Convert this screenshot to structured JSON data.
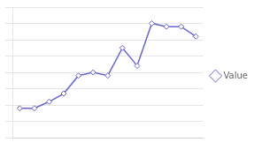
{
  "chart_data": {
    "type": "line",
    "x": [
      1,
      2,
      3,
      4,
      5,
      6,
      7,
      8,
      9,
      10,
      11,
      12,
      13
    ],
    "series": [
      {
        "name": "Value",
        "color": "#6666cc",
        "marker": "diamond",
        "values": [
          18,
          18,
          22,
          27,
          38,
          40,
          38,
          55,
          44,
          70,
          68,
          68,
          62
        ]
      }
    ],
    "xlim": [
      0.5,
      13.5
    ],
    "xticks": [
      2,
      4,
      6,
      8,
      10,
      12
    ],
    "ylim": [
      0,
      80
    ],
    "yticks": [
      0,
      10,
      20,
      30,
      40,
      50,
      60,
      70,
      80
    ],
    "grid": "y",
    "legend": "right",
    "tick_labels": false
  }
}
